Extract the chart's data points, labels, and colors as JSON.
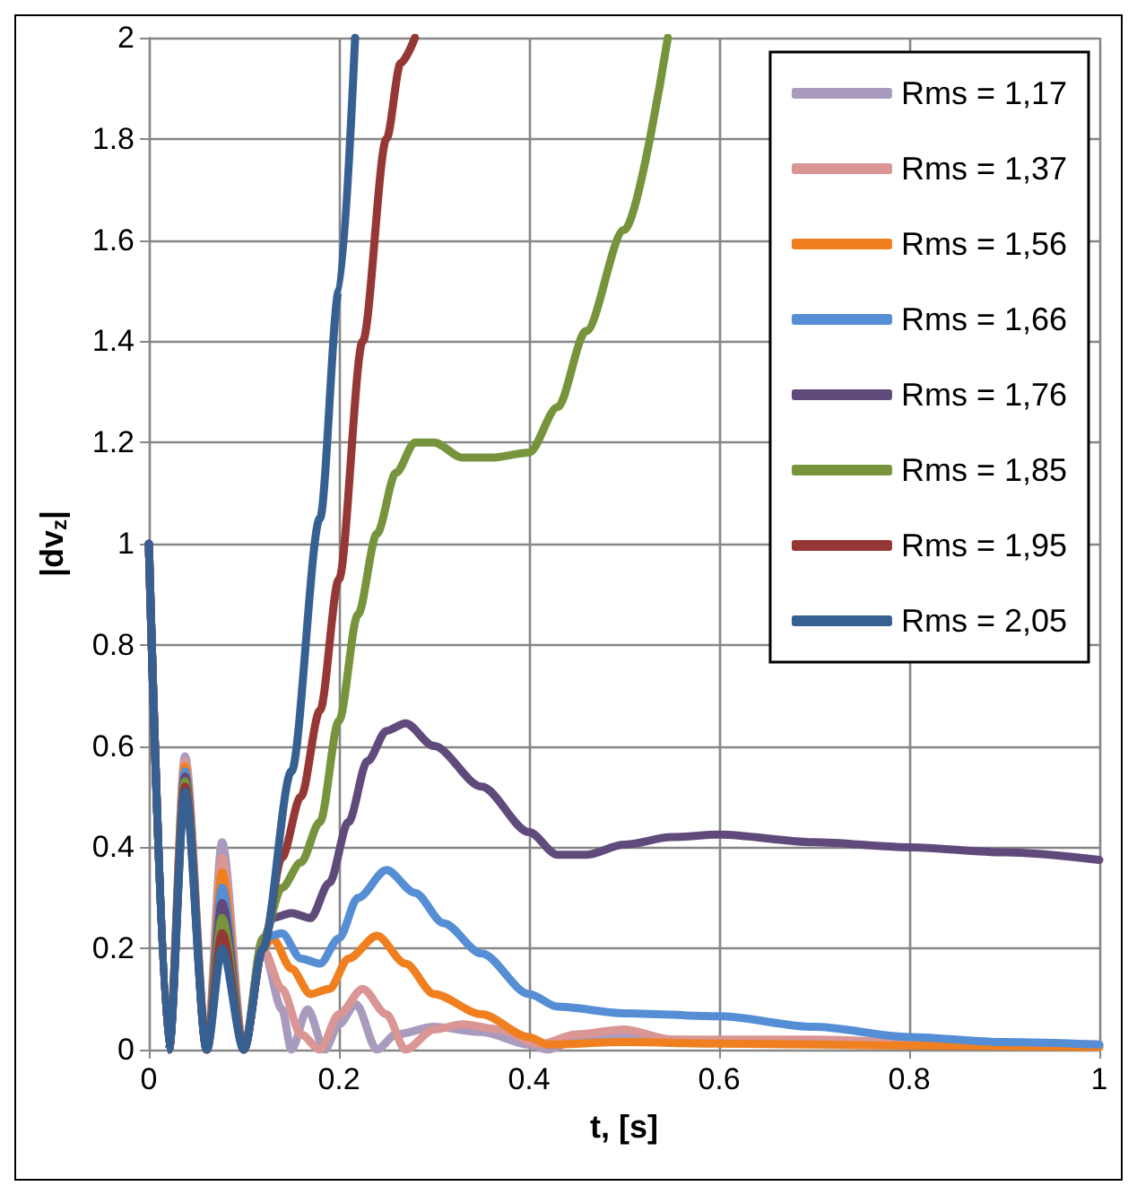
{
  "chart_data": {
    "type": "line",
    "xlabel": "t, [s]",
    "ylabel": "|dv$_{z}$|",
    "xlim": [
      0,
      1
    ],
    "xticks": [
      0,
      0.2,
      0.4,
      0.6,
      0.8,
      1
    ],
    "ylim": [
      0,
      2
    ],
    "yticks": [
      0,
      0.2,
      0.4,
      0.6,
      0.8,
      1,
      1.2,
      1.4,
      1.6,
      1.8,
      2
    ],
    "grid": true,
    "legend": "top right",
    "marker": "none",
    "line_style": "solid",
    "series": [
      {
        "name": "Rms = 1,17",
        "color": "#a99bbd",
        "x": [
          0,
          0.021,
          0.038,
          0.061,
          0.077,
          0.1,
          0.12,
          0.14,
          0.15,
          0.167,
          0.185,
          0.2,
          0.218,
          0.24,
          0.26,
          0.3,
          0.35,
          0.4,
          0.42,
          0.45,
          0.5,
          0.55,
          0.6,
          0.8,
          1
        ],
        "values": [
          1,
          0,
          0.58,
          0,
          0.41,
          0,
          0.2,
          0.08,
          0,
          0.08,
          0,
          0.05,
          0.09,
          0,
          0.03,
          0.045,
          0.035,
          0.01,
          0,
          0.02,
          0.025,
          0.02,
          0.015,
          0.01,
          0.005
        ]
      },
      {
        "name": "Rms = 1,37",
        "color": "#d99694",
        "x": [
          0,
          0.021,
          0.038,
          0.061,
          0.077,
          0.1,
          0.12,
          0.14,
          0.16,
          0.18,
          0.2,
          0.225,
          0.25,
          0.27,
          0.3,
          0.33,
          0.37,
          0.41,
          0.45,
          0.5,
          0.55,
          0.6,
          0.7,
          0.8,
          1
        ],
        "values": [
          1,
          0,
          0.57,
          0,
          0.38,
          0,
          0.2,
          0.12,
          0.03,
          0,
          0.07,
          0.12,
          0.07,
          0,
          0.04,
          0.05,
          0.04,
          0.01,
          0.03,
          0.04,
          0.02,
          0.02,
          0.02,
          0.015,
          0.01
        ]
      },
      {
        "name": "Rms = 1,56",
        "color": "#f0801f",
        "x": [
          0,
          0.021,
          0.038,
          0.061,
          0.077,
          0.1,
          0.12,
          0.13,
          0.15,
          0.17,
          0.19,
          0.21,
          0.24,
          0.27,
          0.3,
          0.35,
          0.4,
          0.42,
          0.5,
          0.6,
          0.8,
          1
        ],
        "values": [
          1,
          0,
          0.56,
          0,
          0.35,
          0,
          0.2,
          0.22,
          0.16,
          0.11,
          0.12,
          0.18,
          0.225,
          0.17,
          0.11,
          0.07,
          0.025,
          0.01,
          0.015,
          0.012,
          0.008,
          0.005
        ]
      },
      {
        "name": "Rms = 1,66",
        "color": "#558ed5",
        "x": [
          0,
          0.021,
          0.038,
          0.061,
          0.077,
          0.1,
          0.12,
          0.14,
          0.16,
          0.18,
          0.2,
          0.22,
          0.25,
          0.28,
          0.31,
          0.35,
          0.4,
          0.43,
          0.5,
          0.6,
          0.7,
          0.8,
          0.9,
          1
        ],
        "values": [
          1,
          0,
          0.55,
          0,
          0.32,
          0,
          0.22,
          0.23,
          0.18,
          0.17,
          0.22,
          0.3,
          0.355,
          0.31,
          0.25,
          0.19,
          0.11,
          0.085,
          0.072,
          0.066,
          0.045,
          0.025,
          0.015,
          0.01
        ]
      },
      {
        "name": "Rms = 1,76",
        "color": "#604a7b",
        "x": [
          0,
          0.021,
          0.038,
          0.061,
          0.077,
          0.1,
          0.12,
          0.13,
          0.15,
          0.17,
          0.19,
          0.21,
          0.23,
          0.25,
          0.27,
          0.3,
          0.35,
          0.4,
          0.43,
          0.46,
          0.5,
          0.55,
          0.6,
          0.7,
          0.8,
          0.9,
          1
        ],
        "values": [
          1,
          0,
          0.54,
          0,
          0.29,
          0,
          0.2,
          0.26,
          0.27,
          0.26,
          0.33,
          0.45,
          0.57,
          0.63,
          0.645,
          0.6,
          0.52,
          0.43,
          0.385,
          0.385,
          0.405,
          0.42,
          0.425,
          0.41,
          0.4,
          0.39,
          0.375
        ]
      },
      {
        "name": "Rms = 1,85",
        "color": "#77933c",
        "x": [
          0,
          0.021,
          0.038,
          0.061,
          0.077,
          0.1,
          0.12,
          0.14,
          0.16,
          0.18,
          0.2,
          0.22,
          0.24,
          0.26,
          0.28,
          0.3,
          0.33,
          0.36,
          0.4,
          0.43,
          0.46,
          0.5,
          0.546
        ],
        "values": [
          1,
          0,
          0.53,
          0,
          0.26,
          0,
          0.22,
          0.32,
          0.37,
          0.45,
          0.65,
          0.86,
          1.02,
          1.14,
          1.2,
          1.2,
          1.17,
          1.17,
          1.18,
          1.27,
          1.42,
          1.62,
          2
        ]
      },
      {
        "name": "Rms = 1,95",
        "color": "#953735",
        "x": [
          0,
          0.021,
          0.038,
          0.061,
          0.077,
          0.1,
          0.12,
          0.14,
          0.16,
          0.18,
          0.2,
          0.225,
          0.25,
          0.265,
          0.28
        ],
        "values": [
          1,
          0,
          0.52,
          0,
          0.23,
          0,
          0.2,
          0.38,
          0.5,
          0.67,
          0.93,
          1.4,
          1.8,
          1.95,
          2
        ]
      },
      {
        "name": "Rms = 2,05",
        "color": "#376092",
        "x": [
          0,
          0.021,
          0.038,
          0.061,
          0.077,
          0.1,
          0.12,
          0.15,
          0.18,
          0.2,
          0.217
        ],
        "values": [
          1,
          0,
          0.51,
          0,
          0.2,
          0,
          0.2,
          0.55,
          1.05,
          1.5,
          2
        ]
      }
    ]
  }
}
